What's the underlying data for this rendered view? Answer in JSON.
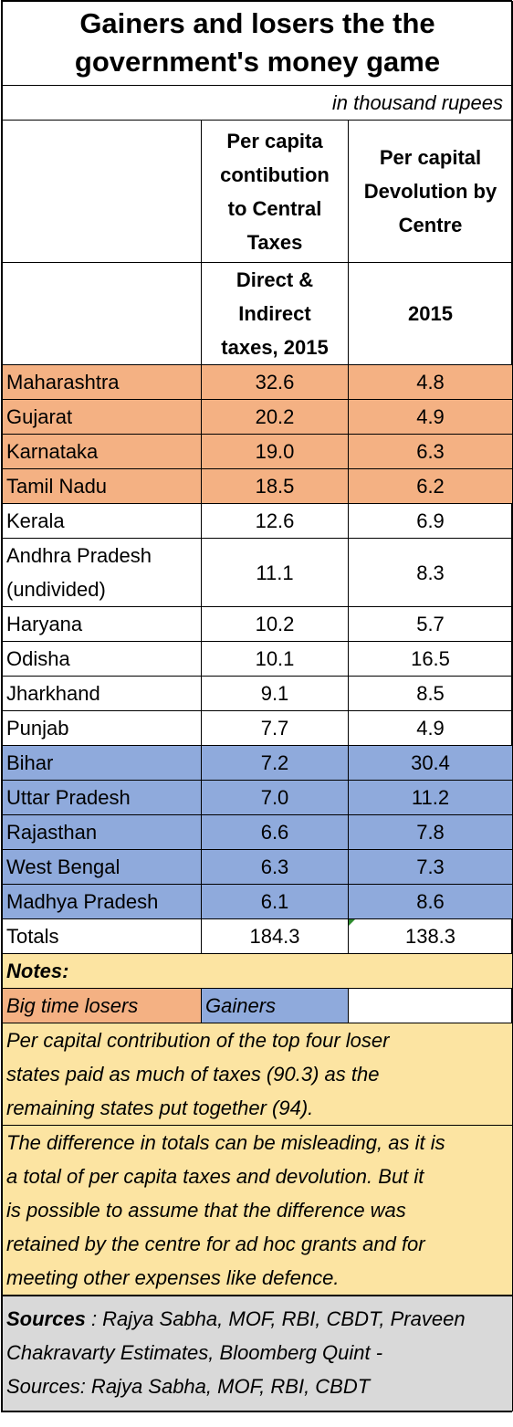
{
  "title_line1": "Gainers and losers the the",
  "title_line2": "government's money game",
  "unit": "in thousand rupees",
  "header": {
    "col1_line1": "Per capita",
    "col1_line2": "contibution",
    "col1_line3": "to Central",
    "col1_line4": "Taxes",
    "col2_line1": "Per capital",
    "col2_line2": "Devolution by",
    "col2_line3": "Centre",
    "sub1_line1": "Direct &",
    "sub1_line2": "Indirect",
    "sub1_line3": "taxes, 2015",
    "sub2": "2015"
  },
  "chart_data": {
    "type": "table",
    "title": "Gainers and losers the the government's money game",
    "unit": "in thousand rupees",
    "columns": [
      "Per capita contibution to Central Taxes (Direct & Indirect taxes, 2015)",
      "Per capital Devolution by Centre (2015)"
    ],
    "rows": [
      {
        "state": "Maharashtra",
        "contribution": "32.6",
        "devolution": "4.8",
        "group": "loser"
      },
      {
        "state": "Gujarat",
        "contribution": "20.2",
        "devolution": "4.9",
        "group": "loser"
      },
      {
        "state": "Karnataka",
        "contribution": "19.0",
        "devolution": "6.3",
        "group": "loser"
      },
      {
        "state": "Tamil Nadu",
        "contribution": "18.5",
        "devolution": "6.2",
        "group": "loser"
      },
      {
        "state": "Kerala",
        "contribution": "12.6",
        "devolution": "6.9",
        "group": "none"
      },
      {
        "state": "Andhra Pradesh",
        "state_line2": "(undivided)",
        "contribution": "11.1",
        "devolution": "8.3",
        "group": "none"
      },
      {
        "state": "Haryana",
        "contribution": "10.2",
        "devolution": "5.7",
        "group": "none"
      },
      {
        "state": "Odisha",
        "contribution": "10.1",
        "devolution": "16.5",
        "group": "none"
      },
      {
        "state": "Jharkhand",
        "contribution": "9.1",
        "devolution": "8.5",
        "group": "none"
      },
      {
        "state": "Punjab",
        "contribution": "7.7",
        "devolution": "4.9",
        "group": "none"
      },
      {
        "state": "Bihar",
        "contribution": "7.2",
        "devolution": "30.4",
        "group": "gainer"
      },
      {
        "state": "Uttar Pradesh",
        "contribution": "7.0",
        "devolution": "11.2",
        "group": "gainer"
      },
      {
        "state": "Rajasthan",
        "contribution": "6.6",
        "devolution": "7.8",
        "group": "gainer"
      },
      {
        "state": "West Bengal",
        "contribution": "6.3",
        "devolution": "7.3",
        "group": "gainer"
      },
      {
        "state": "Madhya Pradesh",
        "contribution": "6.1",
        "devolution": "8.6",
        "group": "gainer"
      }
    ],
    "totals": {
      "label": "Totals",
      "contribution": "184.3",
      "devolution": "138.3"
    }
  },
  "colors": {
    "loser": "#f4b183",
    "gainer": "#8faadc",
    "note": "#fce4a2",
    "source": "#d9d9d9"
  },
  "notes": {
    "title": "Notes:",
    "legend_losers": "Big time losers",
    "legend_gainers": "Gainers",
    "note1_line1": "Per capital contribution of the top four loser",
    "note1_line2": "states paid as much of taxes (90.3) as the",
    "note1_line3": "remaining states put together (94).",
    "note2_line1": "The difference in totals can be misleading, as it is",
    "note2_line2": "a total of per capita taxes and devolution.  But it",
    "note2_line3": "is possible to assume that the difference was",
    "note2_line4": "retained by the centre for ad hoc grants and for",
    "note2_line5": "meeting other expenses like defence."
  },
  "sources": {
    "label": "Sources",
    "line1_rest": " : Rajya Sabha, MOF, RBI, CBDT, Praveen",
    "line2": "Chakravarty Estimates, Bloomberg Quint -",
    "line3": "Sources: Rajya Sabha, MOF, RBI, CBDT"
  }
}
